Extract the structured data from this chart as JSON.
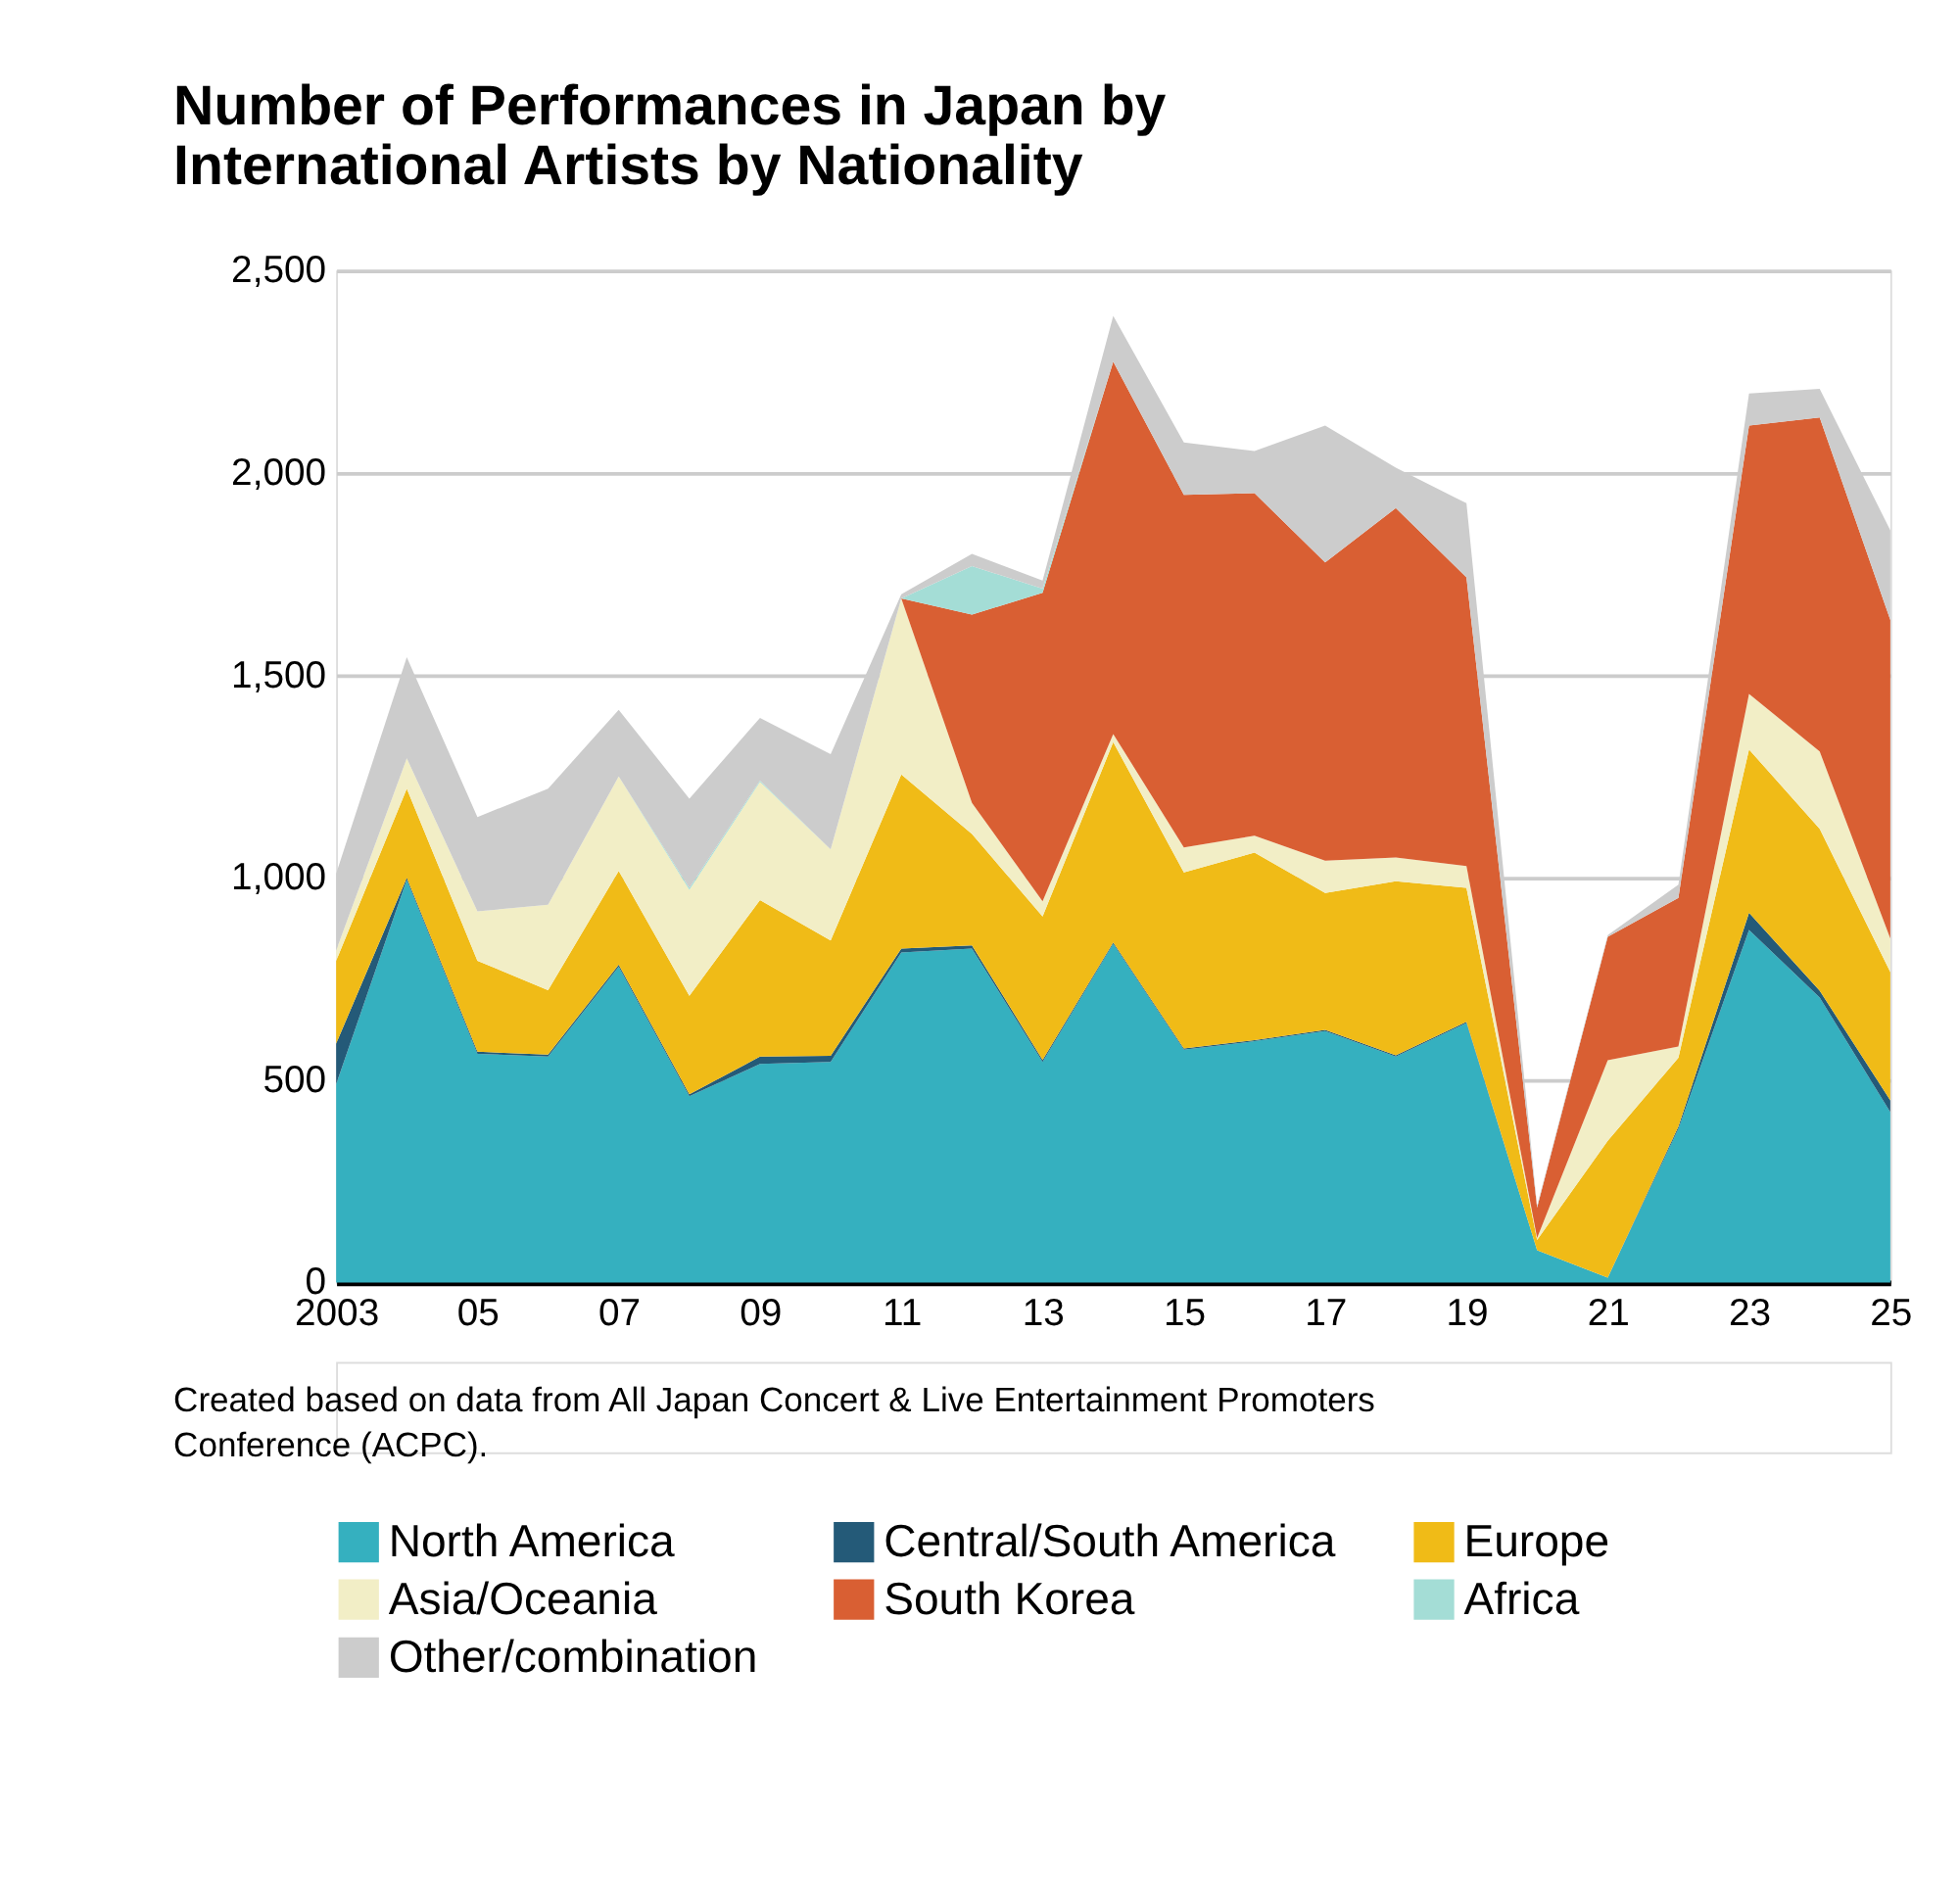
{
  "chart_data": {
    "type": "area",
    "stacked": true,
    "title": "Number of Performances in Japan by International Artists by Nationality",
    "x": [
      2003,
      2004,
      2005,
      2006,
      2007,
      2008,
      2009,
      2010,
      2011,
      2012,
      2013,
      2014,
      2015,
      2016,
      2017,
      2018,
      2019,
      2020,
      2021,
      2022,
      2023,
      2024,
      2025
    ],
    "xlim": [
      2003,
      2025
    ],
    "xticks": [
      {
        "value": 2003,
        "label": "2003"
      },
      {
        "value": 2005,
        "label": "05"
      },
      {
        "value": 2007,
        "label": "07"
      },
      {
        "value": 2009,
        "label": "09"
      },
      {
        "value": 2011,
        "label": "11"
      },
      {
        "value": 2013,
        "label": "13"
      },
      {
        "value": 2015,
        "label": "15"
      },
      {
        "value": 2017,
        "label": "17"
      },
      {
        "value": 2019,
        "label": "19"
      },
      {
        "value": 2021,
        "label": "21"
      },
      {
        "value": 2023,
        "label": "23"
      },
      {
        "value": 2025,
        "label": "25"
      }
    ],
    "ylim": [
      0,
      2500
    ],
    "yticks": [
      0,
      {
        "value": 500,
        "label": "500"
      },
      {
        "value": 1000,
        "label": "1,000"
      },
      {
        "value": 1500,
        "label": "1,500"
      },
      {
        "value": 2000,
        "label": "2,000"
      },
      {
        "value": 2500,
        "label": "2,500"
      }
    ],
    "grid": "y",
    "legend": "bottom",
    "series": [
      {
        "name": "North America",
        "color": "#35b0bf",
        "values": [
          490,
          995,
          565,
          558,
          780,
          460,
          540,
          545,
          815,
          825,
          545,
          837,
          575,
          596,
          621,
          558,
          641,
          80,
          12,
          380,
          871,
          704,
          421
        ]
      },
      {
        "name": "Central/South America",
        "color": "#245a78",
        "values": [
          100,
          5,
          5,
          5,
          5,
          5,
          18,
          15,
          10,
          8,
          5,
          3,
          3,
          3,
          3,
          3,
          3,
          0,
          0,
          5,
          42,
          17,
          29
        ]
      },
      {
        "name": "Europe",
        "color": "#f0bb17",
        "values": [
          205,
          220,
          225,
          159,
          232,
          243,
          387,
          285,
          430,
          275,
          354,
          495,
          435,
          463,
          338,
          430,
          331,
          25,
          338,
          170,
          404,
          400,
          317
        ]
      },
      {
        "name": "Asia/Oceania",
        "color": "#f2eec6",
        "values": [
          25,
          75,
          122,
          211,
          233,
          262,
          292,
          225,
          435,
          77,
          38,
          20,
          62,
          42,
          80,
          59,
          54,
          5,
          199,
          28,
          137,
          191,
          83
        ]
      },
      {
        "name": "South Korea",
        "color": "#d95f33",
        "values": [
          0,
          0,
          0,
          0,
          0,
          0,
          0,
          0,
          0,
          465,
          762,
          920,
          871,
          846,
          737,
          863,
          713,
          75,
          305,
          367,
          663,
          825,
          787
        ]
      },
      {
        "name": "Africa",
        "color": "#a4ddd6",
        "values": [
          0,
          0,
          0,
          0,
          0,
          5,
          3,
          0,
          0,
          120,
          10,
          0,
          0,
          0,
          0,
          0,
          0,
          0,
          0,
          0,
          0,
          0,
          0
        ]
      },
      {
        "name": "Other/combination",
        "color": "#cccccc",
        "values": [
          190,
          250,
          233,
          287,
          165,
          220,
          155,
          235,
          10,
          30,
          20,
          113,
          129,
          104,
          338,
          100,
          183,
          5,
          4,
          33,
          79,
          71,
          221
        ]
      }
    ],
    "annotations": [
      "Created based on data from All Japan Concert & Live Entertainment Promoters Conference (ACPC)."
    ]
  }
}
